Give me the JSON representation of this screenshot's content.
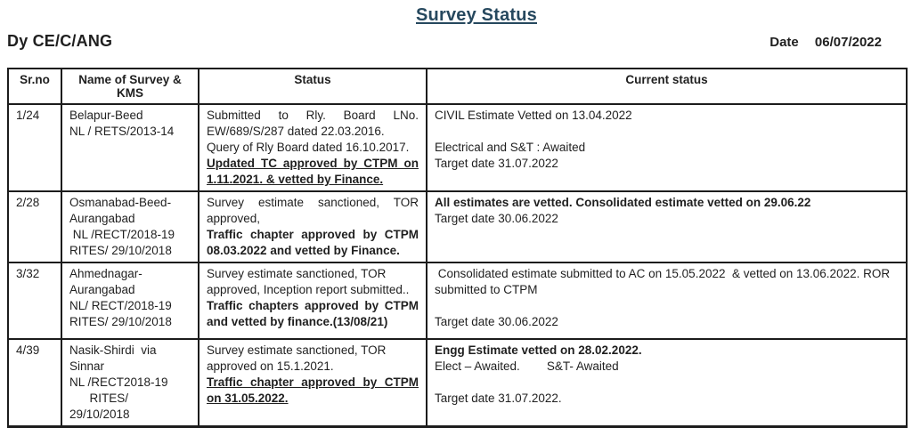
{
  "header": {
    "title": "Survey Status",
    "org": "Dy CE/C/ANG",
    "date_label": "Date",
    "date_value": "06/07/2022"
  },
  "colors": {
    "title_accent": "#26485e",
    "text": "#1f1f1f",
    "border": "#1c1c1c"
  },
  "table": {
    "columns": [
      "Sr.no",
      "Name of Survey & KMS",
      "Status",
      "Current status"
    ],
    "rows": [
      {
        "sr_no": "1/24",
        "name_lines": [
          "Belapur-Beed",
          "NL / RETS/2013-14"
        ],
        "status_paras": [
          {
            "text": "Submitted to Rly. Board LNo. EW/689/S/287 dated 22.03.2016.",
            "justify": true
          },
          {
            "text": "Query of Rly Board dated 16.10.2017."
          },
          {
            "text": "Updated TC approved by CTPM on 1.11.2021. & vetted by Finance.",
            "bold": true,
            "underline": true,
            "justify": true
          }
        ],
        "current_paras": [
          {
            "text": "CIVIL Estimate Vetted on 13.04.2022"
          },
          {
            "text": ""
          },
          {
            "text": "Electrical and S&T : Awaited"
          },
          {
            "text": "Target date 31.07.2022"
          }
        ]
      },
      {
        "sr_no": "2/28",
        "name_lines": [
          "Osmanabad-Beed-",
          "Aurangabad",
          " NL /RECT/2018-19",
          "RITES/ 29/10/2018"
        ],
        "status_paras": [
          {
            "text": "Survey estimate sanctioned, TOR approved,",
            "justify": true
          },
          {
            "text": "Traffic chapter approved by CTPM 08.03.2022 and vetted by Finance.",
            "bold": true,
            "justify": true
          }
        ],
        "current_paras": [
          {
            "text": "All estimates are vetted. Consolidated estimate vetted on 29.06.22",
            "bold": true
          },
          {
            "text": "Target date 30.06.2022"
          }
        ]
      },
      {
        "sr_no": "3/32",
        "name_lines": [
          "Ahmednagar-",
          "Aurangabad",
          "NL/ RECT/2018-19",
          "RITES/ 29/10/2018"
        ],
        "status_paras": [
          {
            "text": "Survey estimate sanctioned, TOR approved, Inception report submitted.."
          },
          {
            "text": "Traffic chapters approved by CTPM and vetted by finance.(13/08/21)",
            "bold": true,
            "justify": true
          }
        ],
        "current_paras": [
          {
            "text": " Consolidated estimate submitted to AC on 15.05.2022  & vetted on 13.06.2022. ROR submitted to CTPM"
          },
          {
            "text": ""
          },
          {
            "text": "Target date 30.06.2022"
          }
        ]
      },
      {
        "sr_no": "4/39",
        "name_lines": [
          "Nasik-Shirdi  via Sinnar",
          "NL /RECT2018-19",
          "      RITES/ 29/10/2018"
        ],
        "status_paras": [
          {
            "text": "Survey estimate sanctioned, TOR approved on 15.1.2021."
          },
          {
            "text": "Traffic chapter approved by CTPM on 31.05.2022.",
            "bold": true,
            "underline": true,
            "justify": true
          }
        ],
        "current_paras": [
          {
            "text": "Engg Estimate vetted on 28.02.2022.",
            "bold": true
          },
          {
            "text": "Elect – Awaited.        S&T- Awaited"
          },
          {
            "text": ""
          },
          {
            "text": "Target date 31.07.2022."
          }
        ]
      }
    ]
  }
}
